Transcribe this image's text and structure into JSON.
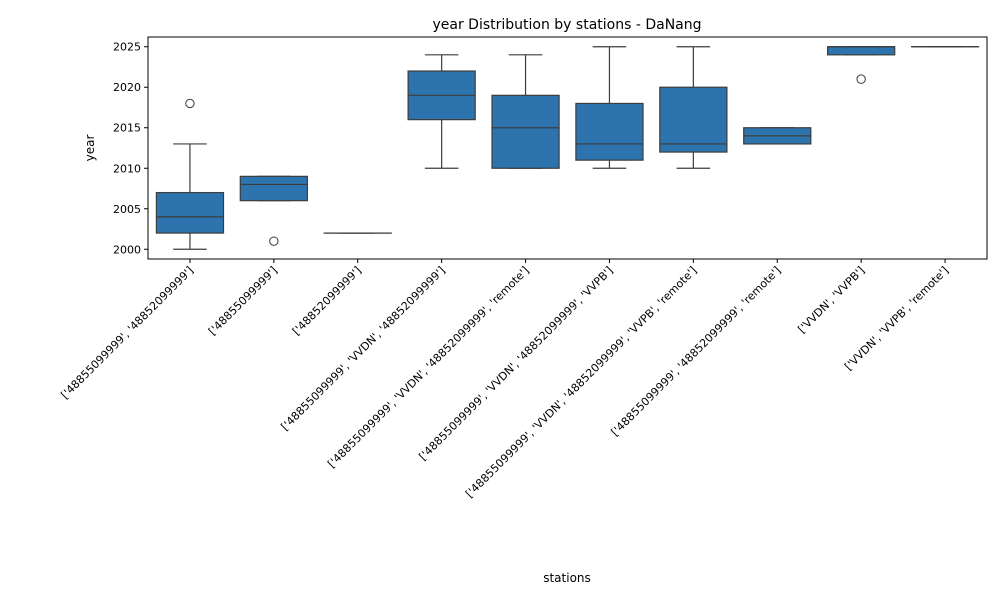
{
  "chart_data": {
    "type": "box",
    "title": "year Distribution by stations - DaNang",
    "xlabel": "stations",
    "ylabel": "year",
    "ylim": [
      1998.8,
      2026.2
    ],
    "yticks": [
      2000,
      2005,
      2010,
      2015,
      2020,
      2025
    ],
    "grid": false,
    "box_color": "#2d73ad",
    "line_color": "#3d3d3d",
    "categories": [
      "['48855099999', '48852099999']",
      "['48855099999']",
      "['48852099999']",
      "['48855099999', 'VVDN', '48852099999']",
      "['48855099999', 'VVDN', '48852099999', 'remote']",
      "['48855099999', 'VVDN', '48852099999', 'VVPB']",
      "['48855099999', 'VVDN', '48852099999', 'VVPB', 'remote']",
      "['48855099999', '48852099999', 'remote']",
      "['VVDN', 'VVPB']",
      "['VVDN', 'VVPB', 'remote']"
    ],
    "boxes": [
      {
        "whislo": 2000,
        "q1": 2002,
        "med": 2004,
        "q3": 2007,
        "whishi": 2013,
        "fliers": [
          2018
        ]
      },
      {
        "whislo": 2006,
        "q1": 2006,
        "med": 2008,
        "q3": 2009,
        "whishi": 2009,
        "fliers": [
          2001
        ]
      },
      {
        "whislo": 2002,
        "q1": 2002,
        "med": 2002,
        "q3": 2002,
        "whishi": 2002,
        "fliers": []
      },
      {
        "whislo": 2010,
        "q1": 2016,
        "med": 2019,
        "q3": 2022,
        "whishi": 2024,
        "fliers": []
      },
      {
        "whislo": 2010,
        "q1": 2010,
        "med": 2015,
        "q3": 2019,
        "whishi": 2024,
        "fliers": []
      },
      {
        "whislo": 2010,
        "q1": 2011,
        "med": 2013,
        "q3": 2018,
        "whishi": 2025,
        "fliers": []
      },
      {
        "whislo": 2010,
        "q1": 2012,
        "med": 2013,
        "q3": 2020,
        "whishi": 2025,
        "fliers": []
      },
      {
        "whislo": 2013,
        "q1": 2013,
        "med": 2014,
        "q3": 2015,
        "whishi": 2015,
        "fliers": []
      },
      {
        "whislo": 2024,
        "q1": 2024,
        "med": 2025,
        "q3": 2025,
        "whishi": 2025,
        "fliers": [
          2021
        ]
      },
      {
        "whislo": 2025,
        "q1": 2025,
        "med": 2025,
        "q3": 2025,
        "whishi": 2025,
        "fliers": []
      }
    ]
  }
}
